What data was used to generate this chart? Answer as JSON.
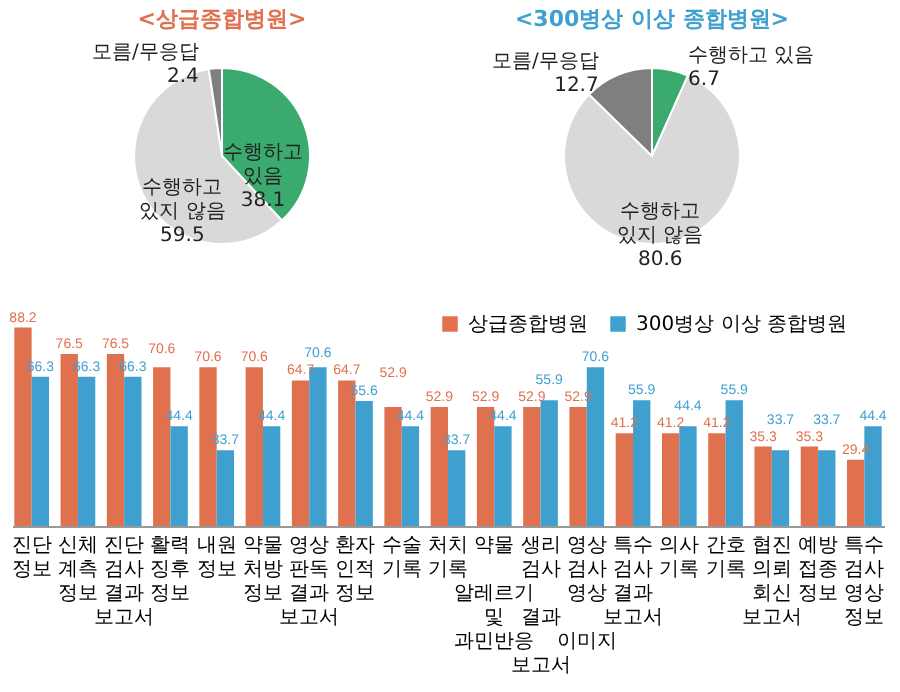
{
  "chart_data": [
    {
      "type": "pie",
      "title": "<상급종합병원>",
      "categories": [
        "수행하고 있음",
        "수행하고 있지 않음",
        "모름/무응답"
      ],
      "values": [
        38.1,
        59.5,
        2.4
      ],
      "colors": [
        "#3aaa6e",
        "#d9d9d9",
        "#7f7f7f"
      ],
      "data_labels": true
    },
    {
      "type": "pie",
      "title": "<300병상 이상 종합병원>",
      "categories": [
        "수행하고 있음",
        "수행하고 있지 않음",
        "모름/무응답"
      ],
      "values": [
        6.7,
        80.6,
        12.7
      ],
      "colors": [
        "#3aaa6e",
        "#d9d9d9",
        "#7f7f7f"
      ],
      "data_labels": true
    },
    {
      "type": "bar",
      "categories": [
        "진단 정보",
        "신체 계측 정보",
        "진단 검사 결과 보고서",
        "활력 징후 정보",
        "내원 정보",
        "약물 처방 정보",
        "영상 판독 결과 보고서",
        "환자 인적 정보",
        "수술 기록",
        "처치 기록",
        "약물 알레르기 및 과민반응",
        "생리 검사 결과 보고서",
        "영상 검사 영상 이미지",
        "특수 검사 결과 보고서",
        "의사 기록",
        "간호 기록",
        "협진 의뢰 회신 보고서",
        "예방 접종 정보",
        "특수 검사 영상 정보"
      ],
      "series": [
        {
          "name": "상급종합병원",
          "color": "#e0714f",
          "values": [
            88.2,
            76.5,
            76.5,
            70.6,
            70.6,
            70.6,
            64.7,
            64.7,
            52.9,
            52.9,
            52.9,
            52.9,
            52.9,
            41.2,
            41.2,
            41.2,
            35.3,
            35.3,
            29.4
          ]
        },
        {
          "name": "300병상 이상 종합병원",
          "color": "#3fa0d0",
          "values": [
            66.3,
            66.3,
            66.3,
            44.4,
            33.7,
            44.4,
            70.6,
            55.6,
            44.4,
            33.7,
            44.4,
            55.9,
            70.6,
            55.9,
            44.4,
            55.9,
            33.7,
            33.7,
            44.4
          ]
        }
      ],
      "data_labels": true,
      "legend": "top right",
      "grid": false
    }
  ]
}
